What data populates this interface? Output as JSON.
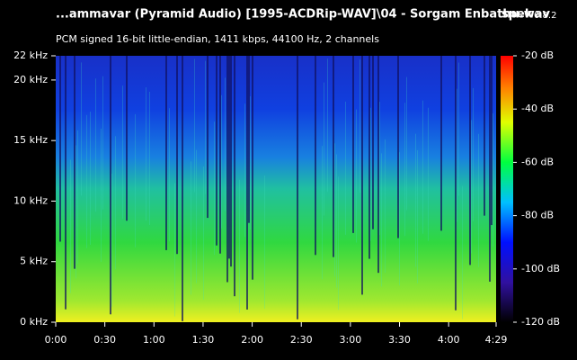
{
  "chart_data": {
    "type": "spectrogram",
    "title": "...ammavar (Pyramid Audio) [1995-ACDRip-WAV]\\04 - Sorgam Enbathu.wav",
    "subtitle": "PCM signed 16-bit little-endian, 1411 kbps, 44100 Hz, 2 channels",
    "app_name": "spek",
    "app_version": "0.8.2",
    "xlim": [
      0,
      269
    ],
    "xticks": [
      {
        "value": 0,
        "label": "0:00"
      },
      {
        "value": 30,
        "label": "0:30"
      },
      {
        "value": 60,
        "label": "1:00"
      },
      {
        "value": 90,
        "label": "1:30"
      },
      {
        "value": 120,
        "label": "2:00"
      },
      {
        "value": 150,
        "label": "2:30"
      },
      {
        "value": 180,
        "label": "3:00"
      },
      {
        "value": 210,
        "label": "3:30"
      },
      {
        "value": 240,
        "label": "4:00"
      },
      {
        "value": 269,
        "label": "4:29"
      }
    ],
    "ylim": [
      0,
      22
    ],
    "yticks": [
      {
        "value": 0,
        "label": "0 kHz"
      },
      {
        "value": 5,
        "label": "5 kHz"
      },
      {
        "value": 10,
        "label": "10 kHz"
      },
      {
        "value": 15,
        "label": "15 kHz"
      },
      {
        "value": 20,
        "label": "20 kHz"
      },
      {
        "value": 22,
        "label": "22 kHz"
      }
    ],
    "colorbar_lim": [
      -120,
      -20
    ],
    "colorbar_ticks": [
      {
        "value": -20,
        "label": "-20 dB"
      },
      {
        "value": -40,
        "label": "-40 dB"
      },
      {
        "value": -60,
        "label": "-60 dB"
      },
      {
        "value": -80,
        "label": "-80 dB"
      },
      {
        "value": -100,
        "label": "-100 dB"
      },
      {
        "value": -120,
        "label": "-120 dB"
      }
    ]
  }
}
